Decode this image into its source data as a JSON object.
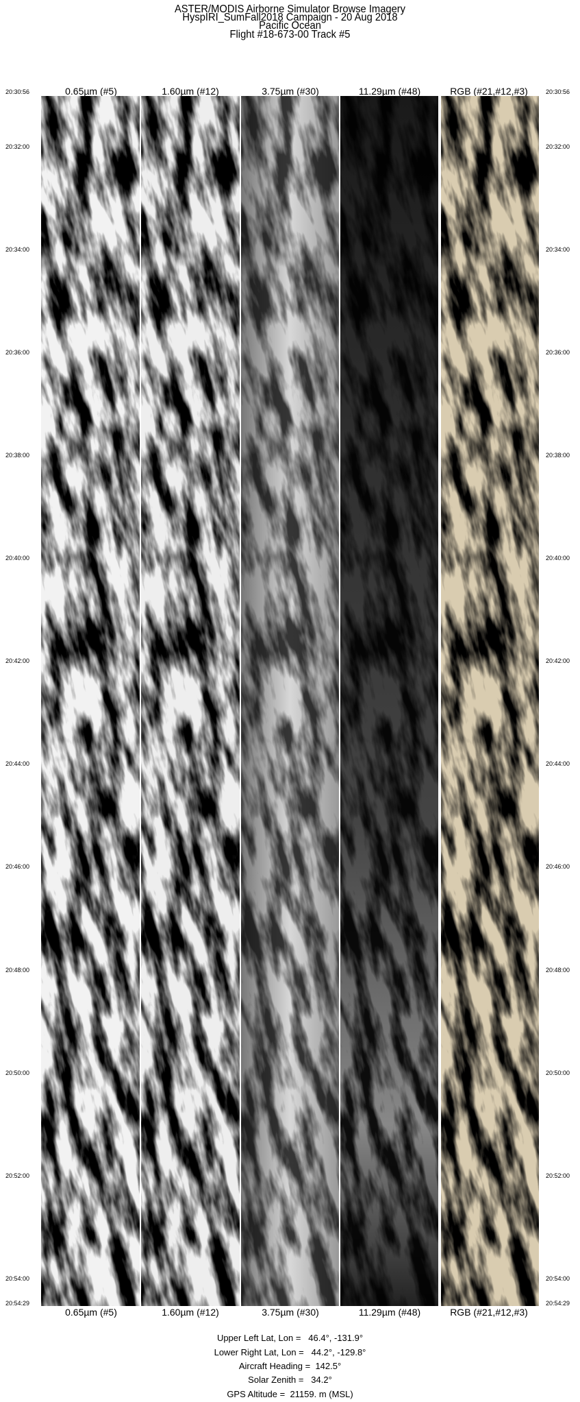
{
  "header": {
    "lines": [
      "ASTER/MODIS Airborne Simulator Browse Imagery",
      "HyspIRI_SumFall2018 Campaign - 20 Aug 2018",
      "Pacific Ocean",
      "Flight #18-673-00 Track #5"
    ]
  },
  "bands": [
    {
      "label": "0.65µm (#5)",
      "style": "visible-gray"
    },
    {
      "label": "1.60µm (#12)",
      "style": "visible-gray"
    },
    {
      "label": "3.75µm (#30)",
      "style": "mid-gray"
    },
    {
      "label": "11.29µm (#48)",
      "style": "dark-thermal"
    },
    {
      "label": "RGB (#21,#12,#3)",
      "style": "sepia-color"
    }
  ],
  "time_axis": {
    "start": "20:30:56",
    "end": "20:54:29",
    "ticks": [
      "20:30:56",
      "20:32:00",
      "20:34:00",
      "20:36:00",
      "20:38:00",
      "20:40:00",
      "20:42:00",
      "20:44:00",
      "20:46:00",
      "20:48:00",
      "20:50:00",
      "20:52:00",
      "20:54:00",
      "20:54:29"
    ]
  },
  "footer": {
    "upper_left": "Upper Left Lat, Lon =   46.4°, -131.9°",
    "lower_right": "Lower Right Lat, Lon =   44.2°, -129.8°",
    "heading": "Aircraft Heading =  142.5°",
    "solar_zenith": "Solar Zenith =   34.2°",
    "gps_altitude": "GPS Altitude =  21159. m (MSL)"
  }
}
